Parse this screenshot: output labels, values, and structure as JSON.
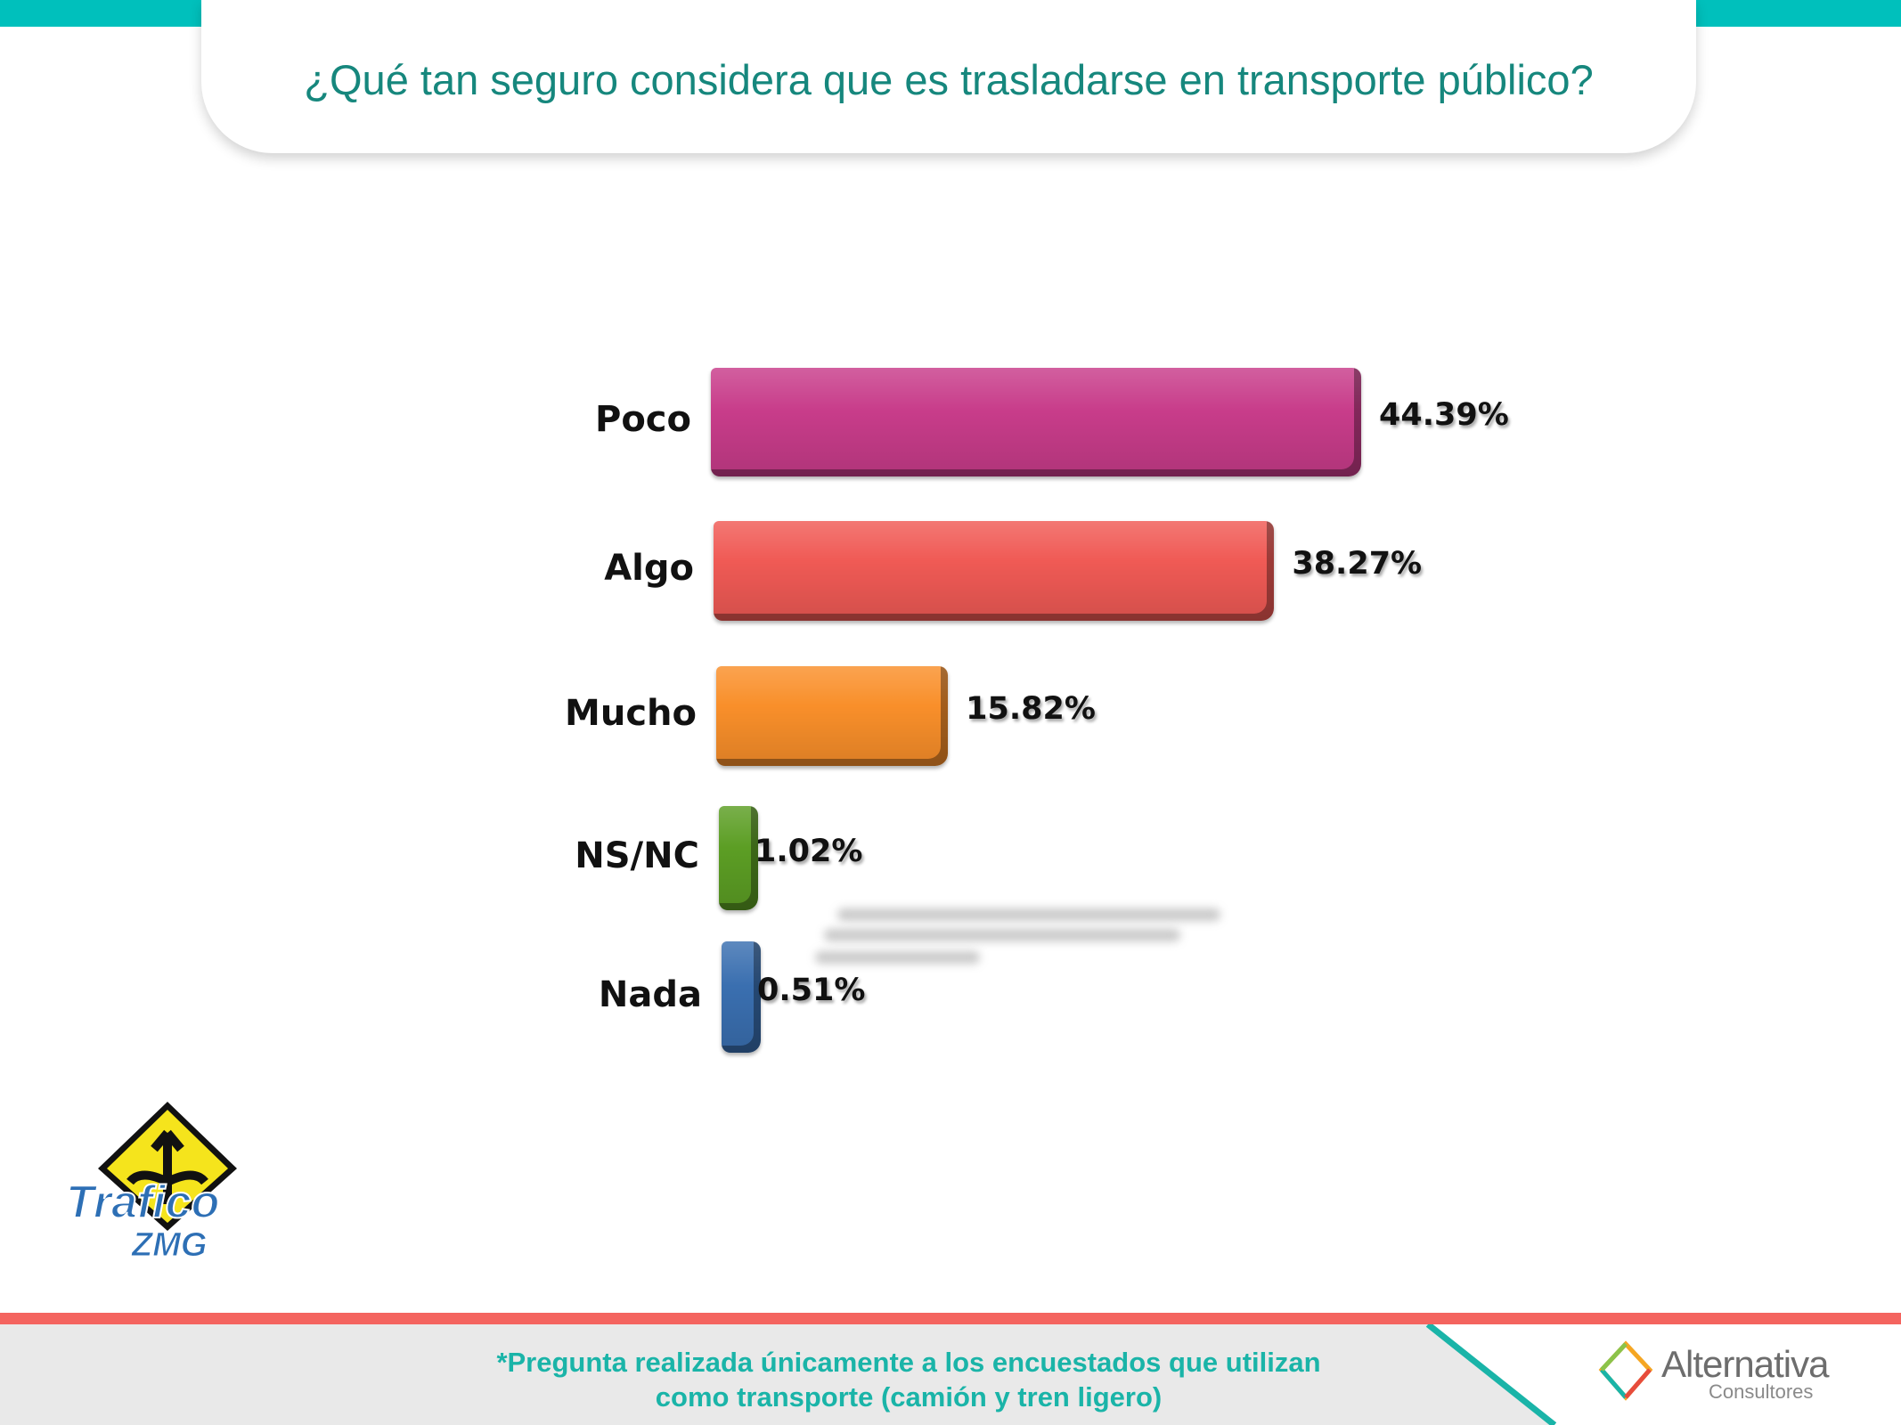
{
  "header": {
    "title": "¿Qué tan seguro considera que es trasladarse en transporte público?"
  },
  "chart_data": {
    "type": "bar",
    "orientation": "horizontal",
    "title": "¿Qué tan seguro considera que es trasladarse en transporte público?",
    "categories": [
      "Poco",
      "Algo",
      "Mucho",
      "NS/NC",
      "Nada"
    ],
    "values": [
      44.39,
      38.27,
      15.82,
      1.02,
      0.51
    ],
    "value_labels": [
      "44.39%",
      "38.27%",
      "15.82%",
      "1.02%",
      "0.51%"
    ],
    "colors": [
      "#c83c8a",
      "#f05a55",
      "#f98f2a",
      "#5c9e24",
      "#3a6fb0"
    ],
    "xlabel": "",
    "ylabel": "",
    "grid": false,
    "legend": "none"
  },
  "footer": {
    "note_line1": "*Pregunta realizada únicamente a los encuestados que utilizan",
    "note_line2": "como transporte (camión y tren ligero)"
  },
  "logos": {
    "left": "Trafico ZMG",
    "right_name": "Alternativa",
    "right_sub": "Consultores"
  },
  "colors": {
    "accent_teal": "#00c0bc",
    "accent_red": "#f4645f",
    "title": "#16877d"
  }
}
